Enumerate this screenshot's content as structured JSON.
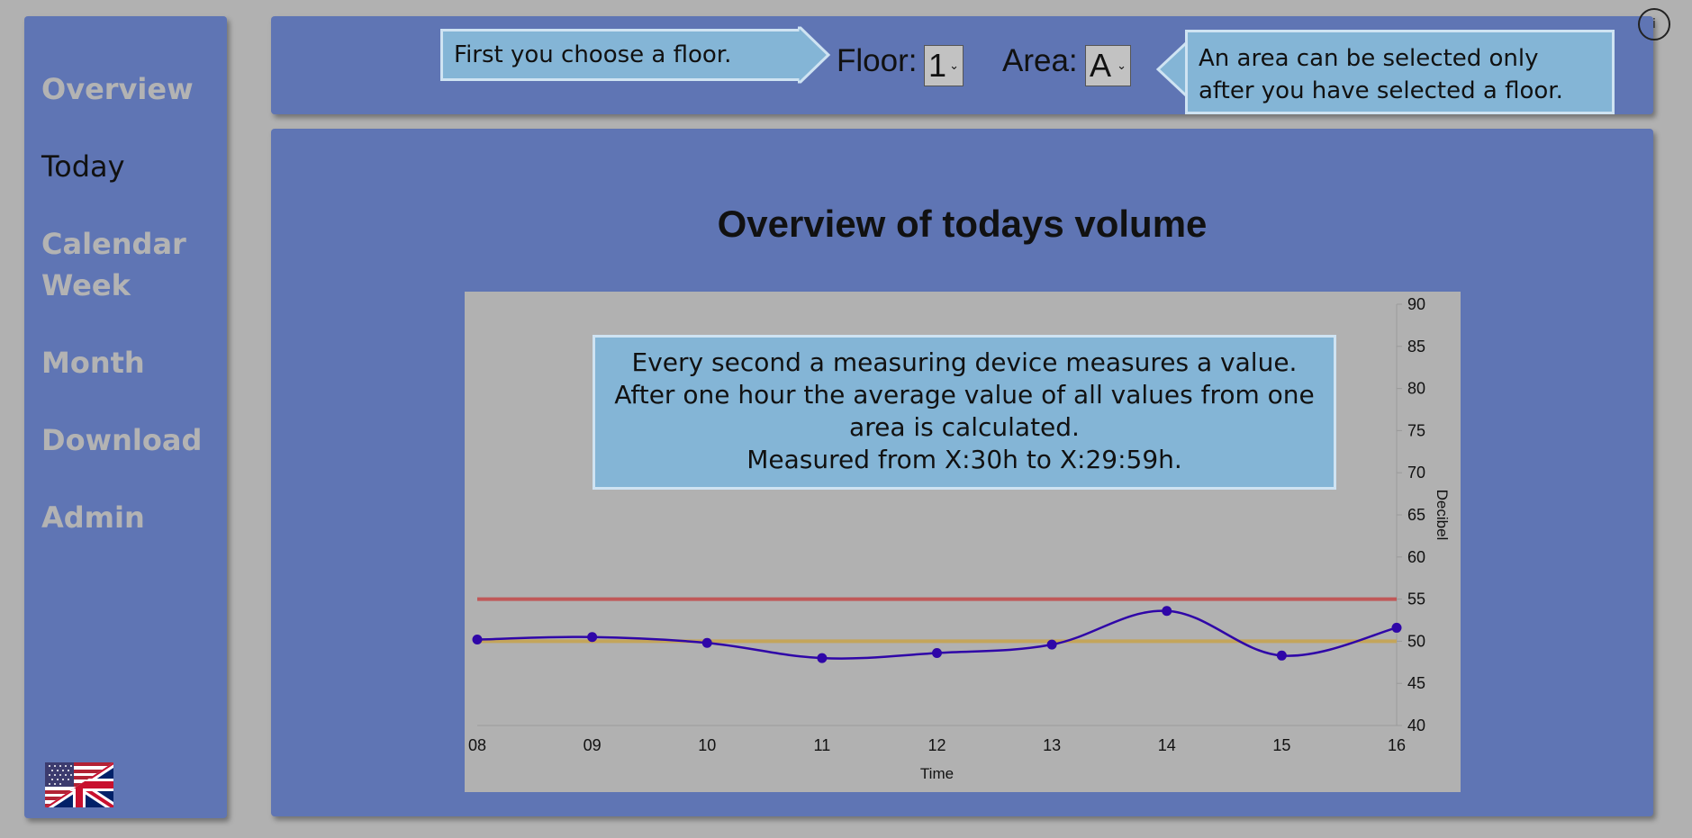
{
  "sidebar": {
    "items": [
      {
        "label": "Overview"
      },
      {
        "label": "Today"
      },
      {
        "label": "Calendar Week"
      },
      {
        "label": "Month"
      },
      {
        "label": "Download"
      },
      {
        "label": "Admin"
      }
    ],
    "active": "Today"
  },
  "header": {
    "floor_tip": "First you choose a floor.",
    "floor_label": "Floor:",
    "floor_value": "1",
    "area_label": "Area:",
    "area_value": "A",
    "area_tip_line1": "An area can be selected only",
    "area_tip_line2": "after you have selected a floor.",
    "info_label": "i"
  },
  "main": {
    "title": "Overview of todays volume",
    "chart_tip_lines": [
      "Every second a measuring device measures a value.",
      "After one hour the average value of all values from one",
      "area is calculated.",
      "Measured from X:30h to X:29:59h."
    ]
  },
  "colors": {
    "panel": "#5f75b4",
    "background": "#b1b1b1",
    "callout": "#84b5d6",
    "series": "#2f06a8",
    "upper_threshold": "#c05858",
    "lower_threshold": "#c4a55a"
  },
  "chart_data": {
    "type": "line",
    "x": [
      "08",
      "09",
      "10",
      "11",
      "12",
      "13",
      "14",
      "15",
      "16"
    ],
    "xlabel": "Time",
    "ylabel": "Decibel",
    "yticks": [
      40,
      45,
      50,
      55,
      60,
      65,
      70,
      75,
      80,
      85,
      90
    ],
    "ylim": [
      40,
      90
    ],
    "y_axis_side": "right",
    "series": [
      {
        "values": [
          50.2,
          50.5,
          49.8,
          48.0,
          48.6,
          49.6,
          53.6,
          48.3,
          51.6
        ]
      }
    ],
    "thresholds": [
      {
        "value": 55,
        "color": "#c05858"
      },
      {
        "value": 50,
        "color": "#c4a55a"
      }
    ],
    "grid": false
  }
}
